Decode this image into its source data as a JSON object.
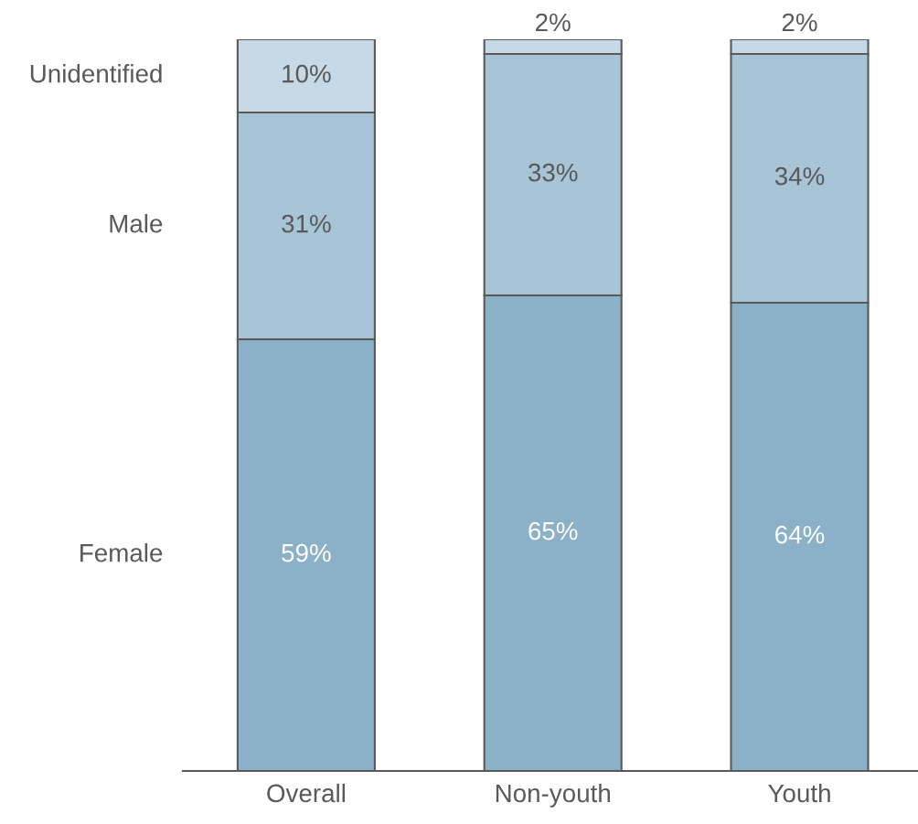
{
  "chart_data": {
    "type": "bar",
    "stacked": true,
    "categories": [
      "Overall",
      "Non-youth",
      "Youth"
    ],
    "series": [
      {
        "name": "Female",
        "color": "#8bb1c8",
        "values": [
          59,
          65,
          64
        ],
        "value_labels": [
          "59%",
          "65%",
          "64%"
        ]
      },
      {
        "name": "Male",
        "color": "#a8c4d7",
        "values": [
          31,
          33,
          34
        ],
        "value_labels": [
          "31%",
          "33%",
          "34%"
        ]
      },
      {
        "name": "Unidentified",
        "color": "#c7d9e6",
        "values": [
          10,
          2,
          2
        ],
        "value_labels": [
          "10%",
          "2%",
          "2%"
        ]
      }
    ],
    "legend": false,
    "grid": false
  }
}
